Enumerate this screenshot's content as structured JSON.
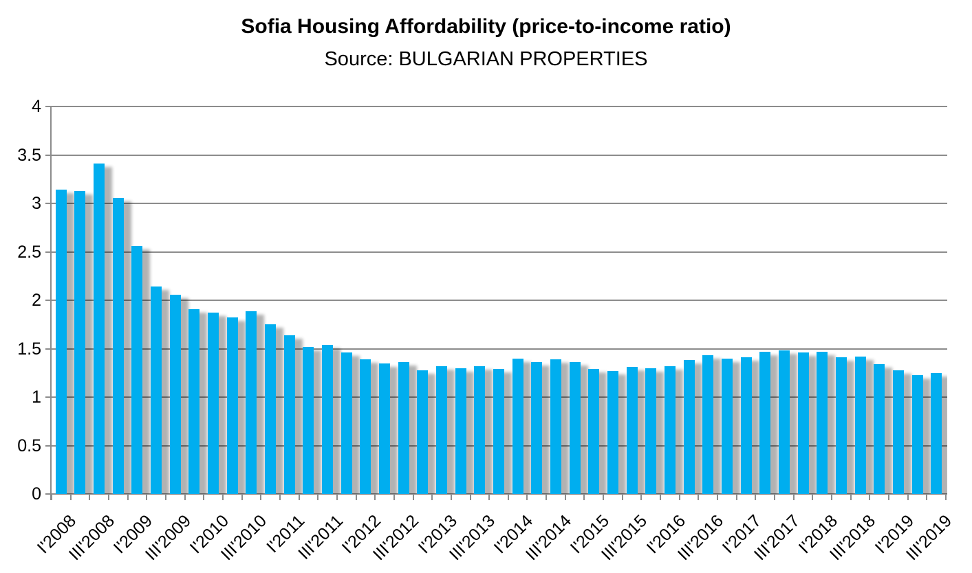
{
  "chart_data": {
    "type": "bar",
    "title": "Sofia Housing Affordability (price-to-income ratio)",
    "subtitle": "Source: BULGARIAN PROPERTIES",
    "categories": [
      "I'2008",
      "II'2008",
      "III'2008",
      "IV'2008",
      "I'2009",
      "II'2009",
      "III'2009",
      "IV'2009",
      "I'2010",
      "II'2010",
      "III'2010",
      "IV'2010",
      "I'2011",
      "II'2011",
      "III'2011",
      "IV'2011",
      "I'2012",
      "II'2012",
      "III'2012",
      "IV'2012",
      "I'2013",
      "II'2013",
      "III'2013",
      "IV'2013",
      "I'2014",
      "II'2014",
      "III'2014",
      "IV'2014",
      "I'2015",
      "II'2015",
      "III'2015",
      "IV'2015",
      "I'2016",
      "II'2016",
      "III'2016",
      "IV'2016",
      "I'2017",
      "II'2017",
      "III'2017",
      "IV'2017",
      "I'2018",
      "II'2018",
      "III'2018",
      "IV'2018",
      "I'2019",
      "II'2019",
      "III'2019"
    ],
    "values": [
      3.14,
      3.13,
      3.41,
      3.06,
      2.56,
      2.14,
      2.06,
      1.91,
      1.87,
      1.82,
      1.89,
      1.75,
      1.64,
      1.52,
      1.54,
      1.46,
      1.39,
      1.35,
      1.36,
      1.28,
      1.32,
      1.3,
      1.32,
      1.29,
      1.4,
      1.36,
      1.39,
      1.36,
      1.29,
      1.27,
      1.31,
      1.3,
      1.32,
      1.38,
      1.43,
      1.4,
      1.41,
      1.47,
      1.48,
      1.46,
      1.47,
      1.41,
      1.42,
      1.34,
      1.28,
      1.23,
      1.25
    ],
    "x_axis_labels_shown": [
      "I'2008",
      "III'2008",
      "I'2009",
      "III'2009",
      "I'2010",
      "III'2010",
      "I'2011",
      "III'2011",
      "I'2012",
      "III'2012",
      "I'2013",
      "III'2013",
      "I'2014",
      "III'2014",
      "I'2015",
      "III'2015",
      "I'2016",
      "III'2016",
      "I'2017",
      "III'2017",
      "I'2018",
      "III'2018",
      "I'2019",
      "III'2019"
    ],
    "x_label_interval": 2,
    "x_label_rotation_deg": 45,
    "xlabel": "",
    "ylabel": "",
    "ylim": [
      0,
      4
    ],
    "ytick_step": 0.5,
    "ytick_labels": [
      "0",
      "0.5",
      "1",
      "1.5",
      "2",
      "2.5",
      "3",
      "3.5",
      "4"
    ],
    "grid": true,
    "legend": "none",
    "bar_color": "#00AEEF",
    "gridline_color": "#8C8C8C",
    "text_color": "#000000",
    "background_color": "#FFFFFF",
    "bar_shadow": true
  }
}
